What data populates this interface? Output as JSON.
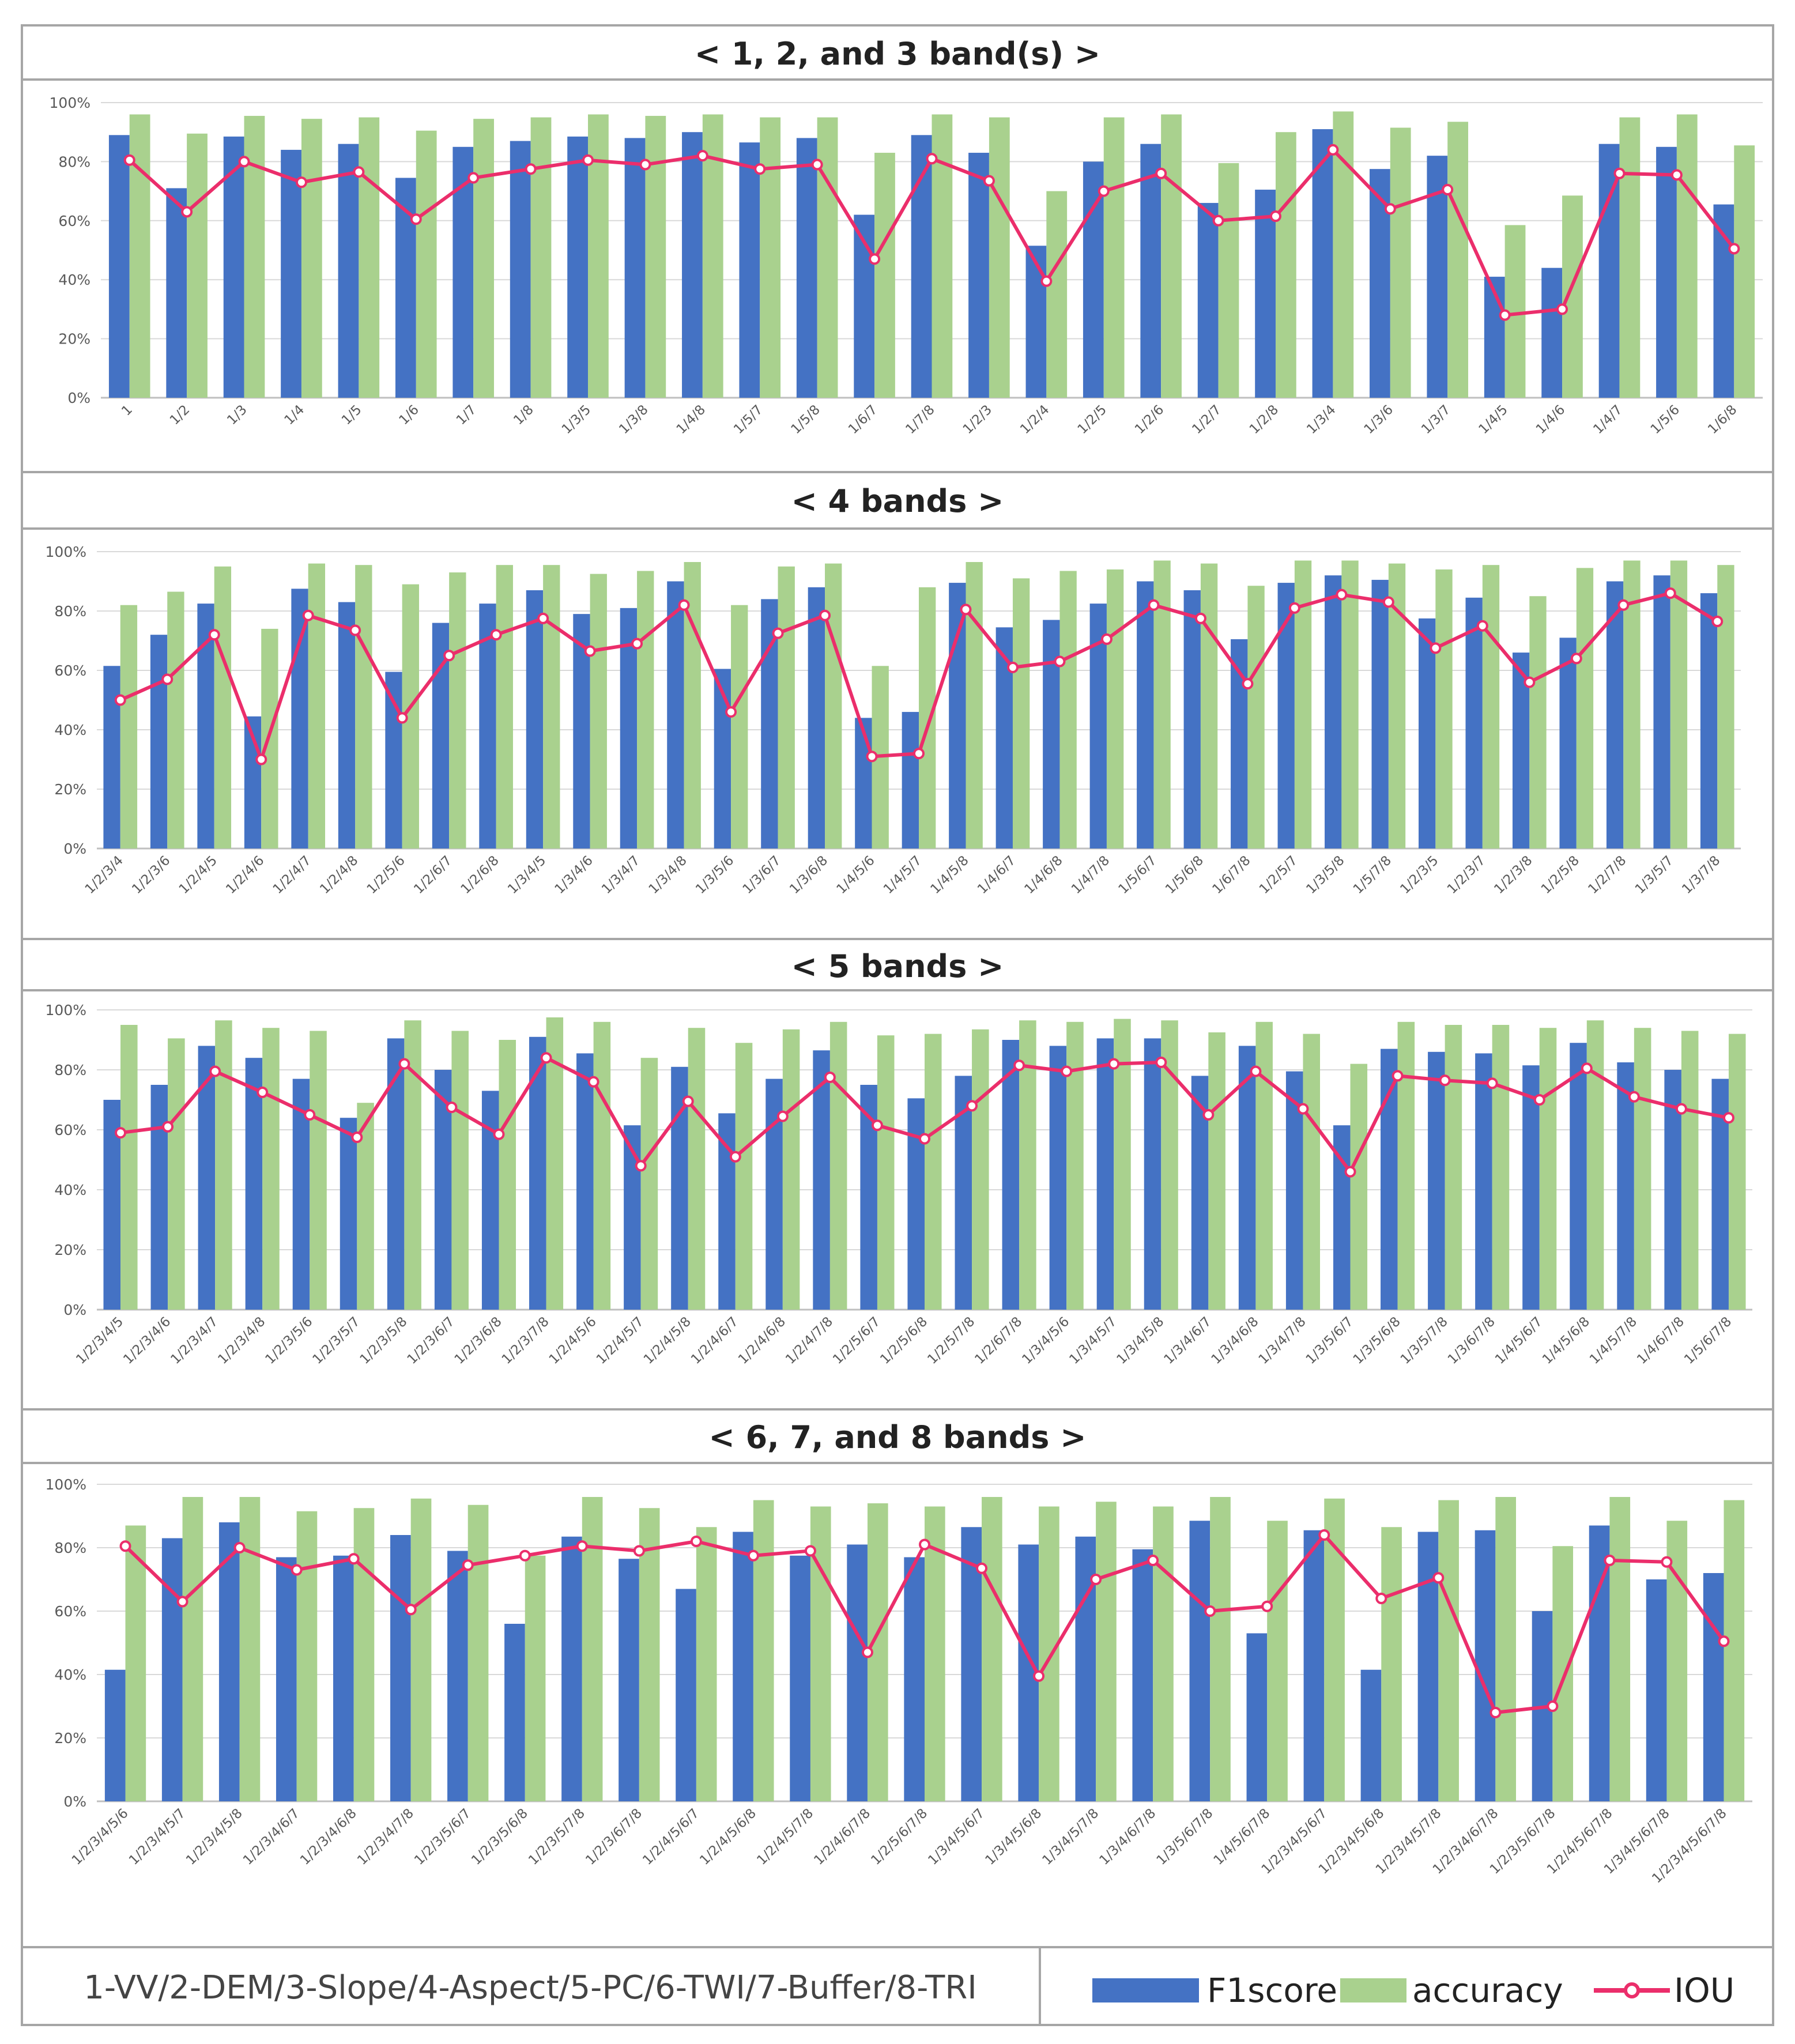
{
  "colors": {
    "f1": "#4472C4",
    "acc": "#A9D18E",
    "iou": "#EB2E6B",
    "border": "#A6A6A6",
    "grid": "#D9D9D9",
    "axis": "#BFBFBF"
  },
  "legend": {
    "f1": "F1score",
    "acc": "accuracy",
    "iou": "IOU"
  },
  "footnote": "1-VV/2-DEM/3-Slope/4-Aspect/5-PC/6-TWI/7-Buffer/8-TRI",
  "chart_data": [
    {
      "type": "bar",
      "title": "< 1, 2, and 3 band(s) >",
      "ylim": [
        0,
        100
      ],
      "yticks": [
        "0%",
        "20%",
        "40%",
        "60%",
        "80%",
        "100%"
      ],
      "categories": [
        "1",
        "1/2",
        "1/3",
        "1/4",
        "1/5",
        "1/6",
        "1/7",
        "1/8",
        "1/3/5",
        "1/3/8",
        "1/4/8",
        "1/5/7",
        "1/5/8",
        "1/6/7",
        "1/7/8",
        "1/2/3",
        "1/2/4",
        "1/2/5",
        "1/2/6",
        "1/2/7",
        "1/2/8",
        "1/3/4",
        "1/3/6",
        "1/3/7",
        "1/4/5",
        "1/4/6",
        "1/4/7",
        "1/5/6",
        "1/6/8"
      ],
      "series": [
        {
          "name": "F1score",
          "kind": "bar",
          "values": [
            89,
            71,
            88.5,
            84,
            86,
            74.5,
            85,
            87,
            88.5,
            88,
            90,
            86.5,
            88,
            62,
            89,
            83,
            51.5,
            80,
            86,
            66,
            70.5,
            91,
            77.5,
            82,
            41,
            44,
            86,
            85,
            65.5
          ]
        },
        {
          "name": "accuracy",
          "kind": "bar",
          "values": [
            96,
            89.5,
            95.5,
            94.5,
            95,
            90.5,
            94.5,
            95,
            96,
            95.5,
            96,
            95,
            95,
            83,
            96,
            95,
            70,
            95,
            96,
            79.5,
            90,
            97,
            91.5,
            93.5,
            58.5,
            68.5,
            95,
            96,
            85.5
          ]
        },
        {
          "name": "IOU",
          "kind": "line",
          "values": [
            80.5,
            63,
            80,
            73,
            76.5,
            60.5,
            74.5,
            77.5,
            80.5,
            79,
            82,
            77.5,
            79,
            47,
            81,
            73.5,
            39.5,
            70,
            76,
            60,
            61.5,
            84,
            64,
            70.5,
            28,
            30,
            76,
            75.5,
            50.5
          ]
        }
      ]
    },
    {
      "type": "bar",
      "title": "< 4 bands >",
      "ylim": [
        0,
        100
      ],
      "yticks": [
        "0%",
        "20%",
        "40%",
        "60%",
        "80%",
        "100%"
      ],
      "categories": [
        "1/2/3/4",
        "1/2/3/6",
        "1/2/4/5",
        "1/2/4/6",
        "1/2/4/7",
        "1/2/4/8",
        "1/2/5/6",
        "1/2/6/7",
        "1/2/6/8",
        "1/3/4/5",
        "1/3/4/6",
        "1/3/4/7",
        "1/3/4/8",
        "1/3/5/6",
        "1/3/6/7",
        "1/3/6/8",
        "1/4/5/6",
        "1/4/5/7",
        "1/4/5/8",
        "1/4/6/7",
        "1/4/6/8",
        "1/4/7/8",
        "1/5/6/7",
        "1/5/6/8",
        "1/6/7/8",
        "1/2/5/7",
        "1/3/5/8",
        "1/5/7/8",
        "1/2/3/5",
        "1/2/3/7",
        "1/2/3/8",
        "1/2/5/8",
        "1/2/7/8",
        "1/3/5/7",
        "1/3/7/8"
      ],
      "series": [
        {
          "name": "F1score",
          "kind": "bar",
          "values": [
            61.5,
            72,
            82.5,
            44.5,
            87.5,
            83,
            59.5,
            76,
            82.5,
            87,
            79,
            81,
            90,
            60.5,
            84,
            88,
            44,
            46,
            89.5,
            74.5,
            77,
            82.5,
            90,
            87,
            70.5,
            89.5,
            92,
            90.5,
            77.5,
            84.5,
            66,
            71,
            90,
            92,
            86
          ]
        },
        {
          "name": "accuracy",
          "kind": "bar",
          "values": [
            82,
            86.5,
            95,
            74,
            96,
            95.5,
            89,
            93,
            95.5,
            95.5,
            92.5,
            93.5,
            96.5,
            82,
            95,
            96,
            61.5,
            88,
            96.5,
            91,
            93.5,
            94,
            97,
            96,
            88.5,
            97,
            97,
            96,
            94,
            95.5,
            85,
            94.5,
            97,
            97,
            95.5
          ]
        },
        {
          "name": "IOU",
          "kind": "line",
          "values": [
            50,
            57,
            72,
            30,
            78.5,
            73.5,
            44,
            65,
            72,
            77.5,
            66.5,
            69,
            82,
            46,
            72.5,
            78.5,
            31,
            32,
            80.5,
            61,
            63,
            70.5,
            82,
            77.5,
            55.5,
            81,
            85.5,
            83,
            67.5,
            75,
            56,
            64,
            82,
            86,
            76.5
          ]
        }
      ]
    },
    {
      "type": "bar",
      "title": "< 5 bands >",
      "ylim": [
        0,
        100
      ],
      "yticks": [
        "0%",
        "20%",
        "40%",
        "60%",
        "80%",
        "100%"
      ],
      "categories": [
        "1/2/3/4/5",
        "1/2/3/4/6",
        "1/2/3/4/7",
        "1/2/3/4/8",
        "1/2/3/5/6",
        "1/2/3/5/7",
        "1/2/3/5/8",
        "1/2/3/6/7",
        "1/2/3/6/8",
        "1/2/3/7/8",
        "1/2/4/5/6",
        "1/2/4/5/7",
        "1/2/4/5/8",
        "1/2/4/6/7",
        "1/2/4/6/8",
        "1/2/4/7/8",
        "1/2/5/6/7",
        "1/2/5/6/8",
        "1/2/5/7/8",
        "1/2/6/7/8",
        "1/3/4/5/6",
        "1/3/4/5/7",
        "1/3/4/5/8",
        "1/3/4/6/7",
        "1/3/4/6/8",
        "1/3/4/7/8",
        "1/3/5/6/7",
        "1/3/5/6/8",
        "1/3/5/7/8",
        "1/3/6/7/8",
        "1/4/5/6/7",
        "1/4/5/6/8",
        "1/4/5/7/8",
        "1/4/6/7/8",
        "1/5/6/7/8"
      ],
      "series": [
        {
          "name": "F1score",
          "kind": "bar",
          "values": [
            70,
            75,
            88,
            84,
            77,
            64,
            90.5,
            80,
            73,
            91,
            85.5,
            61.5,
            81,
            65.5,
            77,
            86.5,
            75,
            70.5,
            78,
            90,
            88,
            90.5,
            90.5,
            78,
            88,
            79.5,
            61.5,
            87,
            86,
            85.5,
            81.5,
            89,
            82.5,
            80,
            77
          ]
        },
        {
          "name": "accuracy",
          "kind": "bar",
          "values": [
            95,
            90.5,
            96.5,
            94,
            93,
            69,
            96.5,
            93,
            90,
            97.5,
            96,
            84,
            94,
            89,
            93.5,
            96,
            91.5,
            92,
            93.5,
            96.5,
            96,
            97,
            96.5,
            92.5,
            96,
            92,
            82,
            96,
            95,
            95,
            94,
            96.5,
            94,
            93,
            92
          ]
        },
        {
          "name": "IOU",
          "kind": "line",
          "values": [
            59,
            61,
            79.5,
            72.5,
            65,
            57.5,
            82,
            67.5,
            58.5,
            84,
            76,
            48,
            69.5,
            51,
            64.5,
            77.5,
            61.5,
            57,
            68,
            81.5,
            79.5,
            82,
            82.5,
            65,
            79.5,
            67,
            46,
            78,
            76.5,
            75.5,
            70,
            80.5,
            71,
            67,
            64
          ]
        }
      ]
    },
    {
      "type": "bar",
      "title": "< 6, 7, and 8 bands >",
      "ylim": [
        0,
        100
      ],
      "yticks": [
        "0%",
        "20%",
        "40%",
        "60%",
        "80%",
        "100%"
      ],
      "categories": [
        "1/2/3/4/5/6",
        "1/2/3/4/5/7",
        "1/2/3/4/5/8",
        "1/2/3/4/6/7",
        "1/2/3/4/6/8",
        "1/2/3/4/7/8",
        "1/2/3/5/6/7",
        "1/2/3/5/6/8",
        "1/2/3/5/7/8",
        "1/2/3/6/7/8",
        "1/2/4/5/6/7",
        "1/2/4/5/6/8",
        "1/2/4/5/7/8",
        "1/2/4/6/7/8",
        "1/2/5/6/7/8",
        "1/3/4/5/6/7",
        "1/3/4/5/6/8",
        "1/3/4/5/7/8",
        "1/3/4/6/7/8",
        "1/3/5/6/7/8",
        "1/4/5/6/7/8",
        "1/2/3/4/5/6/7",
        "1/2/3/4/5/6/8",
        "1/2/3/4/5/7/8",
        "1/2/3/4/6/7/8",
        "1/2/3/5/6/7/8",
        "1/2/4/5/6/7/8",
        "1/3/4/5/6/7/8",
        "1/2/3/4/5/6/7/8"
      ],
      "series": [
        {
          "name": "F1score",
          "kind": "bar",
          "values": [
            41.5,
            83,
            88,
            77,
            77.5,
            84,
            79,
            56,
            83.5,
            76.5,
            67,
            85,
            77.5,
            81,
            77,
            86.5,
            81,
            83.5,
            79.5,
            88.5,
            53,
            85.5,
            41.5,
            85,
            85.5,
            60,
            87,
            70,
            72
          ]
        },
        {
          "name": "accuracy",
          "kind": "bar",
          "values": [
            87,
            96,
            96,
            91.5,
            92.5,
            95.5,
            93.5,
            77.5,
            96,
            92.5,
            86.5,
            95,
            93,
            94,
            93,
            96,
            93,
            94.5,
            93,
            96,
            88.5,
            95.5,
            86.5,
            95,
            96,
            80.5,
            96,
            88.5,
            95
          ]
        },
        {
          "name": "IOU",
          "kind": "line",
          "values": [
            80.5,
            63,
            80,
            73,
            76.5,
            60.5,
            74.5,
            77.5,
            80.5,
            79,
            82,
            77.5,
            79,
            47,
            81,
            73.5,
            39.5,
            70,
            76,
            60,
            61.5,
            84,
            64,
            70.5,
            28,
            30,
            76,
            75.5,
            50.5
          ]
        }
      ]
    }
  ]
}
